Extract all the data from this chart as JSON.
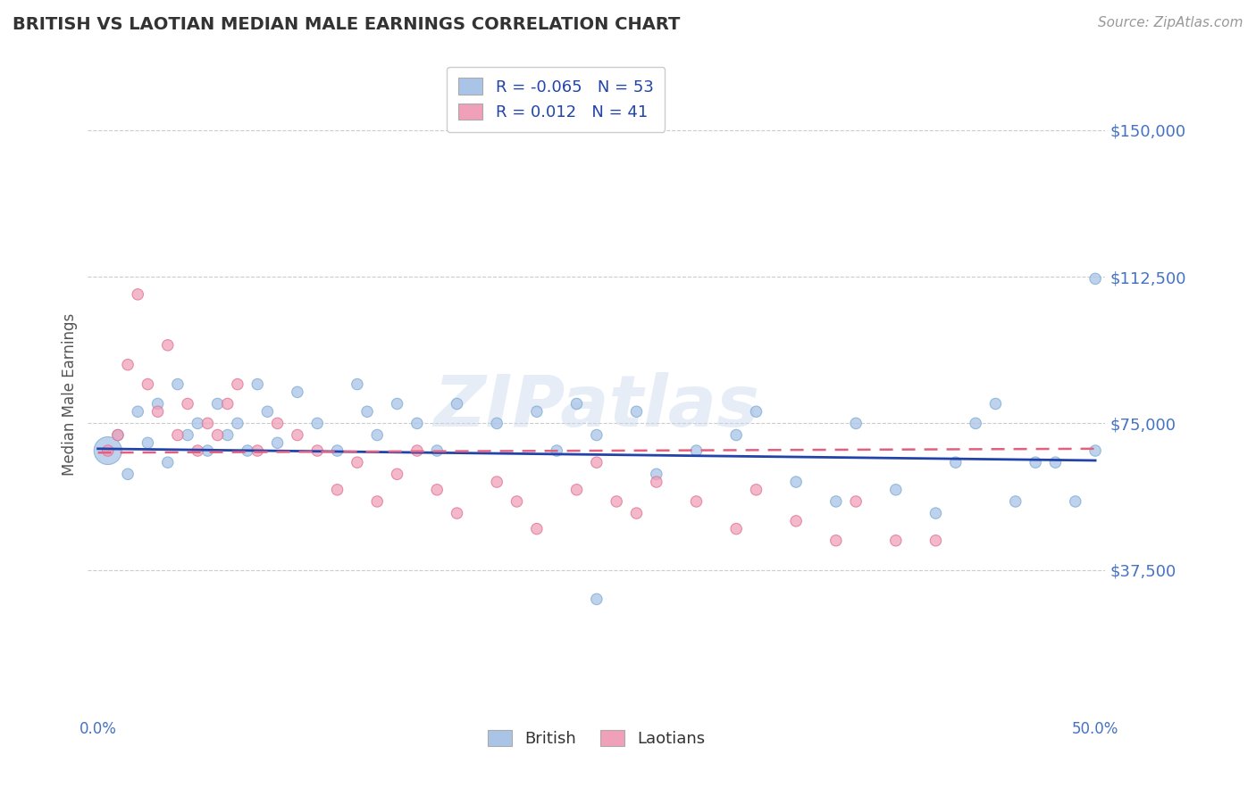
{
  "title": "BRITISH VS LAOTIAN MEDIAN MALE EARNINGS CORRELATION CHART",
  "source_text": "Source: ZipAtlas.com",
  "ylabel": "Median Male Earnings",
  "xlim": [
    -0.005,
    0.505
  ],
  "ylim": [
    0,
    165000
  ],
  "yticks": [
    37500,
    75000,
    112500,
    150000
  ],
  "ytick_labels": [
    "$37,500",
    "$75,000",
    "$112,500",
    "$150,000"
  ],
  "xticks": [
    0.0,
    0.05,
    0.1,
    0.15,
    0.2,
    0.25,
    0.3,
    0.35,
    0.4,
    0.45,
    0.5
  ],
  "xtick_labels": [
    "0.0%",
    "",
    "",
    "",
    "",
    "",
    "",
    "",
    "",
    "",
    "50.0%"
  ],
  "british_color": "#aac4e8",
  "laotian_color": "#f0a0b8",
  "british_edge_color": "#7aaad0",
  "laotian_edge_color": "#e07090",
  "british_line_color": "#2244aa",
  "laotian_line_color": "#e06080",
  "R_british": -0.065,
  "N_british": 53,
  "R_laotian": 0.012,
  "N_laotian": 41,
  "british_x": [
    0.005,
    0.01,
    0.015,
    0.02,
    0.025,
    0.03,
    0.035,
    0.04,
    0.045,
    0.05,
    0.055,
    0.06,
    0.065,
    0.07,
    0.075,
    0.08,
    0.085,
    0.09,
    0.1,
    0.11,
    0.12,
    0.13,
    0.135,
    0.14,
    0.15,
    0.16,
    0.17,
    0.18,
    0.2,
    0.22,
    0.23,
    0.24,
    0.25,
    0.27,
    0.28,
    0.3,
    0.32,
    0.33,
    0.35,
    0.37,
    0.38,
    0.4,
    0.42,
    0.43,
    0.44,
    0.45,
    0.46,
    0.47,
    0.48,
    0.49,
    0.5,
    0.5,
    0.25
  ],
  "british_y": [
    68000,
    72000,
    62000,
    78000,
    70000,
    80000,
    65000,
    85000,
    72000,
    75000,
    68000,
    80000,
    72000,
    75000,
    68000,
    85000,
    78000,
    70000,
    83000,
    75000,
    68000,
    85000,
    78000,
    72000,
    80000,
    75000,
    68000,
    80000,
    75000,
    78000,
    68000,
    80000,
    72000,
    78000,
    62000,
    68000,
    72000,
    78000,
    60000,
    55000,
    75000,
    58000,
    52000,
    65000,
    75000,
    80000,
    55000,
    65000,
    65000,
    55000,
    112000,
    68000,
    30000
  ],
  "laotian_x": [
    0.005,
    0.01,
    0.015,
    0.02,
    0.025,
    0.03,
    0.035,
    0.04,
    0.045,
    0.05,
    0.055,
    0.06,
    0.065,
    0.07,
    0.08,
    0.09,
    0.1,
    0.11,
    0.12,
    0.13,
    0.14,
    0.15,
    0.16,
    0.17,
    0.18,
    0.2,
    0.21,
    0.22,
    0.24,
    0.25,
    0.26,
    0.27,
    0.28,
    0.3,
    0.32,
    0.33,
    0.35,
    0.37,
    0.38,
    0.4,
    0.42
  ],
  "laotian_y": [
    68000,
    72000,
    90000,
    108000,
    85000,
    78000,
    95000,
    72000,
    80000,
    68000,
    75000,
    72000,
    80000,
    85000,
    68000,
    75000,
    72000,
    68000,
    58000,
    65000,
    55000,
    62000,
    68000,
    58000,
    52000,
    60000,
    55000,
    48000,
    58000,
    65000,
    55000,
    52000,
    60000,
    55000,
    48000,
    58000,
    50000,
    45000,
    55000,
    45000,
    45000
  ],
  "british_sizes": [
    500,
    80,
    80,
    80,
    80,
    80,
    80,
    80,
    80,
    80,
    80,
    80,
    80,
    80,
    80,
    80,
    80,
    80,
    80,
    80,
    80,
    80,
    80,
    80,
    80,
    80,
    80,
    80,
    80,
    80,
    80,
    80,
    80,
    80,
    80,
    80,
    80,
    80,
    80,
    80,
    80,
    80,
    80,
    80,
    80,
    80,
    80,
    80,
    80,
    80,
    80,
    80,
    80
  ],
  "laotian_sizes": [
    80,
    80,
    80,
    80,
    80,
    80,
    80,
    80,
    80,
    80,
    80,
    80,
    80,
    80,
    80,
    80,
    80,
    80,
    80,
    80,
    80,
    80,
    80,
    80,
    80,
    80,
    80,
    80,
    80,
    80,
    80,
    80,
    80,
    80,
    80,
    80,
    80,
    80,
    80,
    80,
    80
  ],
  "watermark": "ZIPatlas",
  "background_color": "#ffffff",
  "grid_color": "#cccccc",
  "tick_color": "#4472c4",
  "ylabel_color": "#555555",
  "title_color": "#333333"
}
